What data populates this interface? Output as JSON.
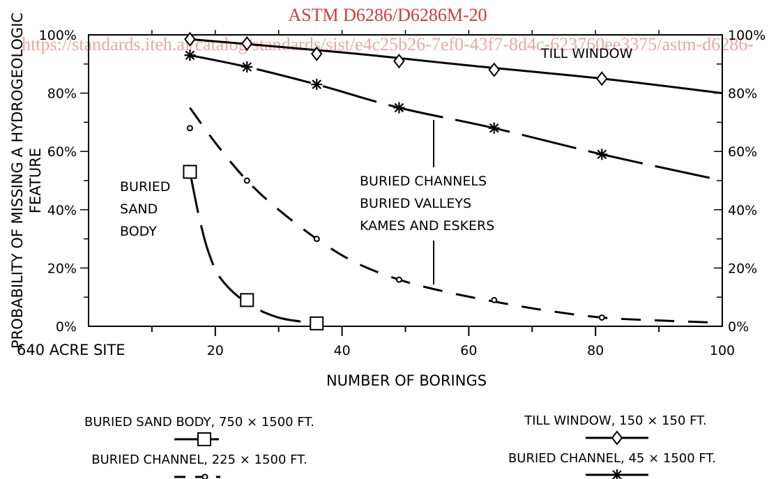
{
  "watermark": {
    "standard": "ASTM D6286/D6286M-20",
    "url": "https://standards.iteh.ai/catalog/standards/sist/e4c25b26-7ef0-43f7-8d4c-623760ee3375/astm-d6286-"
  },
  "chart_data": {
    "type": "line",
    "xlabel": "NUMBER OF BORINGS",
    "ylabel": [
      "PROBABILITY OF MISSING A HYDROGEOLOGIC",
      "FEATURE"
    ],
    "x_prefix_label": "640 ACRE SITE",
    "xlim": [
      0,
      100
    ],
    "ylim": [
      0,
      100
    ],
    "x_ticks": [
      20,
      40,
      60,
      80,
      100
    ],
    "y_ticks": [
      0,
      20,
      40,
      60,
      80,
      100
    ],
    "y_tick_labels": [
      "0%",
      "20%",
      "40%",
      "60%",
      "80%",
      "100%"
    ],
    "grid": false,
    "series": [
      {
        "name": "TILL WINDOW, 150 × 150 FT.",
        "marker": "diamond",
        "line": "solid",
        "points": [
          [
            16,
            98.5
          ],
          [
            25,
            97
          ],
          [
            36,
            93.5
          ],
          [
            49,
            91
          ],
          [
            64,
            88
          ],
          [
            81,
            85
          ]
        ],
        "curve": [
          [
            16,
            98.5
          ],
          [
            40,
            94
          ],
          [
            60,
            89.5
          ],
          [
            81,
            85
          ],
          [
            100,
            80
          ]
        ]
      },
      {
        "name": "BURIED CHANNEL, 45 × 1500 FT.",
        "marker": "asterisk",
        "line": "long-dash",
        "points": [
          [
            16,
            93
          ],
          [
            25,
            89
          ],
          [
            36,
            83
          ],
          [
            49,
            75
          ],
          [
            64,
            68
          ],
          [
            81,
            59
          ]
        ],
        "curve": [
          [
            16,
            93
          ],
          [
            25,
            89
          ],
          [
            36,
            83
          ],
          [
            49,
            75
          ],
          [
            64,
            68
          ],
          [
            81,
            59
          ],
          [
            100,
            50
          ]
        ]
      },
      {
        "name": "BURIED CHANNEL, 225 × 1500 FT.",
        "marker": "circle",
        "line": "dashed",
        "points": [
          [
            16,
            68
          ],
          [
            25,
            50
          ],
          [
            36,
            30
          ],
          [
            49,
            16
          ],
          [
            64,
            9
          ],
          [
            81,
            3
          ]
        ],
        "curve": [
          [
            16,
            75
          ],
          [
            20,
            63
          ],
          [
            25,
            50
          ],
          [
            30,
            40
          ],
          [
            36,
            30
          ],
          [
            42,
            22
          ],
          [
            49,
            16
          ],
          [
            56,
            12
          ],
          [
            64,
            8.5
          ],
          [
            72,
            5.5
          ],
          [
            81,
            3
          ],
          [
            90,
            2
          ],
          [
            100,
            1.2
          ]
        ]
      },
      {
        "name": "BURIED SAND BODY, 750 × 1500 FT.",
        "marker": "square",
        "line": "dash-dot",
        "points": [
          [
            16,
            53
          ],
          [
            25,
            9
          ],
          [
            36,
            1
          ]
        ],
        "curve": [
          [
            16,
            53
          ],
          [
            17.5,
            37
          ],
          [
            19,
            25
          ],
          [
            21,
            16
          ],
          [
            25,
            8
          ],
          [
            30,
            3
          ],
          [
            36,
            1
          ]
        ]
      }
    ],
    "annotations": {
      "till_window": "TILL WINDOW",
      "buried_sand_body": [
        "BURIED",
        "SAND",
        "BODY"
      ],
      "buried_channels": [
        "BURIED CHANNELS",
        "BURIED VALLEYS",
        "KAMES AND ESKERS"
      ]
    },
    "legend_placement": "bottom"
  }
}
